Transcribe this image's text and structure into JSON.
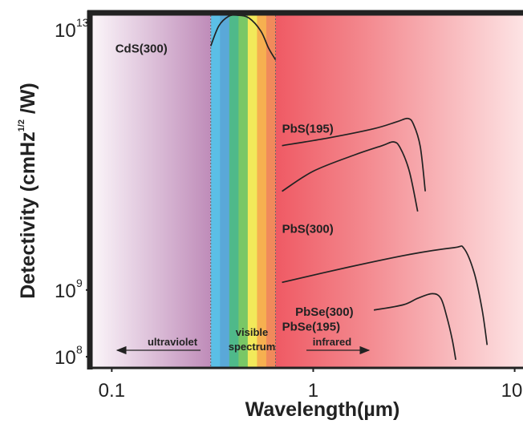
{
  "chart_data": {
    "type": "line",
    "xscale": "log",
    "yscale": "log",
    "xlim": [
      0.08,
      11
    ],
    "ylim": [
      70000000,
      13000000000000
    ],
    "x_ticks": [
      {
        "value": 0.1,
        "label": "0.1"
      },
      {
        "value": 1,
        "label": "1"
      },
      {
        "value": 10,
        "label": "10"
      }
    ],
    "y_ticks": [
      {
        "value": 10000000000000,
        "base": "10",
        "exp": "13"
      },
      {
        "value": 1000000000,
        "base": "10",
        "exp": "9"
      },
      {
        "value": 100000000,
        "base": "10",
        "exp": "8"
      }
    ],
    "xlabel": "Wavelength(µm)",
    "ylabel": {
      "main": "Detectivity (cmHz",
      "sup": "1/2",
      "tail": " /W)"
    },
    "regions": {
      "ultraviolet": "ultraviolet",
      "visible": [
        "visible",
        "spectrum"
      ],
      "infrared": "infrared"
    },
    "visible_range": [
      0.31,
      0.65
    ],
    "spectrum_colors": [
      "#5bbfe6",
      "#5aa8d8",
      "#4fb98a",
      "#79c766",
      "#f2e95a",
      "#f6b050",
      "#f08a5b"
    ],
    "series": [
      {
        "name": "CdS(300)",
        "points": [
          [
            0.31,
            4500000000000
          ],
          [
            0.34,
            9000000000000
          ],
          [
            0.38,
            12500000000000
          ],
          [
            0.42,
            13000000000000
          ],
          [
            0.48,
            11800000000000
          ],
          [
            0.55,
            7500000000000
          ],
          [
            0.6,
            4200000000000
          ],
          [
            0.65,
            2800000000000
          ]
        ]
      },
      {
        "name": "PbS(195)",
        "points": [
          [
            0.7,
            145000000000
          ],
          [
            1.2,
            190000000000
          ],
          [
            2.0,
            260000000000
          ],
          [
            2.6,
            330000000000
          ],
          [
            2.95,
            370000000000
          ],
          [
            3.15,
            300000000000
          ],
          [
            3.4,
            140000000000
          ],
          [
            3.6,
            30000000000
          ]
        ]
      },
      {
        "name": "PbS(300)",
        "points": [
          [
            0.7,
            30000000000
          ],
          [
            1.0,
            60000000000
          ],
          [
            1.6,
            105000000000
          ],
          [
            2.2,
            145000000000
          ],
          [
            2.5,
            165000000000
          ],
          [
            2.7,
            135000000000
          ],
          [
            3.0,
            60000000000
          ],
          [
            3.3,
            15000000000
          ]
        ]
      },
      {
        "name": "PbSe(195)",
        "points": [
          [
            0.7,
            1300000000
          ],
          [
            1.5,
            2200000000
          ],
          [
            3.0,
            3400000000
          ],
          [
            5.0,
            4300000000
          ],
          [
            5.6,
            4200000000
          ],
          [
            6.3,
            1800000000
          ],
          [
            6.9,
            500000000
          ],
          [
            7.3,
            150000000
          ]
        ]
      },
      {
        "name": "PbSe(300)",
        "points": [
          [
            2.0,
            500000000
          ],
          [
            2.8,
            600000000
          ],
          [
            3.3,
            750000000
          ],
          [
            3.9,
            880000000
          ],
          [
            4.3,
            750000000
          ],
          [
            4.6,
            400000000
          ],
          [
            4.9,
            180000000
          ],
          [
            5.1,
            90000000
          ]
        ]
      }
    ]
  }
}
